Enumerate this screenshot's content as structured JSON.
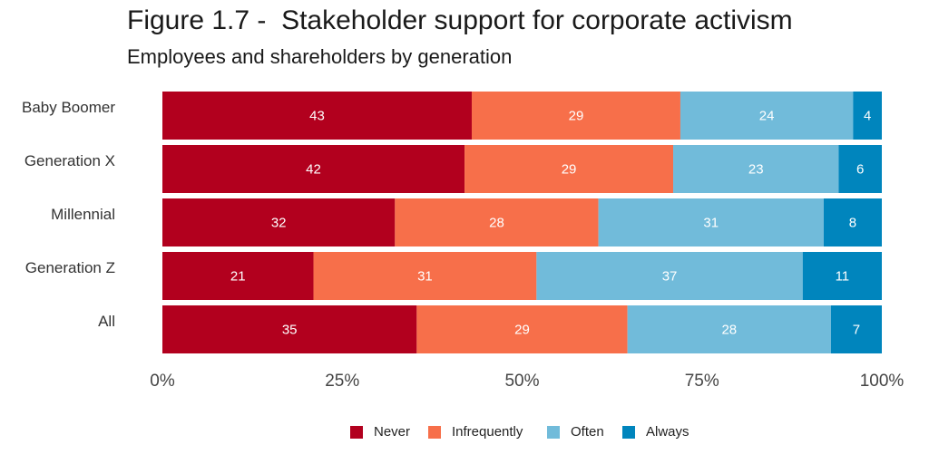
{
  "chart_data": {
    "type": "bar",
    "orientation": "horizontal",
    "stacked": true,
    "normalized": true,
    "title": "Figure 1.7 -  Stakeholder support for corporate activism",
    "subtitle": "Employees and shareholders by generation",
    "categories": [
      "Baby Boomer",
      "Generation X",
      "Millennial",
      "Generation Z",
      "All"
    ],
    "series": [
      {
        "name": "Never",
        "color": "#b2001e",
        "values": [
          43,
          42,
          32,
          21,
          35
        ]
      },
      {
        "name": "Infrequently",
        "color": "#f76f4a",
        "values": [
          29,
          29,
          28,
          31,
          29
        ]
      },
      {
        "name": "Often",
        "color": "#71bbda",
        "values": [
          24,
          23,
          31,
          37,
          28
        ]
      },
      {
        "name": "Always",
        "color": "#0085bd",
        "values": [
          4,
          6,
          8,
          11,
          7
        ]
      }
    ],
    "x_ticks": [
      "0%",
      "25%",
      "50%",
      "75%",
      "100%"
    ],
    "xlim": [
      0,
      100
    ],
    "grid": false,
    "legend_position": "bottom"
  }
}
